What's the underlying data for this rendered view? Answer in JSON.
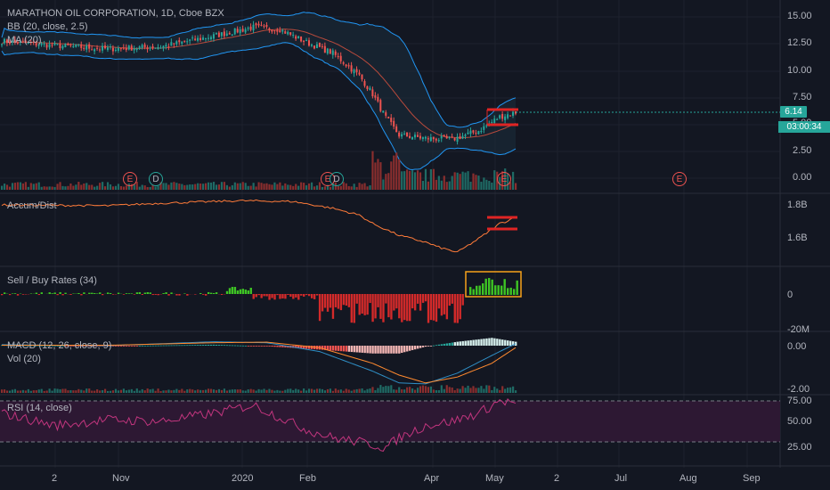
{
  "header": {
    "symbol_title": "MARATHON OIL CORPORATION, 1D, Cboe BZX",
    "bb_indicator": "BB (20, close, 2.5)",
    "ma_indicator": "MA (20)"
  },
  "last_price": "6.14",
  "countdown": "03:00:34",
  "panes": {
    "accum": "Accum/Dist",
    "sellbuy": "Sell / Buy Rates (34)",
    "macd": "MACD (12, 26, close, 9)",
    "vol": "Vol (20)",
    "rsi": "RSI (14, close)"
  },
  "price_axis": [
    "15.00",
    "12.50",
    "10.00",
    "7.50",
    "5.00",
    "2.50",
    "0.00"
  ],
  "accum_axis": [
    "1.8B",
    "1.6B"
  ],
  "sellbuy_axis": [
    "0",
    "-20M"
  ],
  "macd_axis": [
    "0.00",
    "-2.00"
  ],
  "rsi_axis": [
    "75.00",
    "50.00",
    "25.00"
  ],
  "time_axis": [
    "2",
    "Nov",
    "2020",
    "Feb",
    "Apr",
    "May",
    "2",
    "Jul",
    "Aug",
    "Sep"
  ],
  "events": [
    {
      "label": "E",
      "kind": "earnings"
    },
    {
      "label": "D",
      "kind": "dividend"
    },
    {
      "label": "E",
      "kind": "earnings"
    },
    {
      "label": "D",
      "kind": "dividend"
    },
    {
      "label": "E",
      "kind": "earnings"
    },
    {
      "label": "E",
      "kind": "earnings"
    }
  ],
  "colors": {
    "background": "#131722",
    "up": "#26a69a",
    "down": "#ef5350",
    "bb_band": "#2196f3",
    "bb_fill": "#1a2c3a",
    "ma": "#f57c4d",
    "accum": "#ff7b39",
    "rsi": "#c2357e",
    "rsi_band": "#2d1833",
    "highlight": "#e02424",
    "buy_bar": "#3ec424",
    "sell_bar": "#d32a2a",
    "macd_line": "#2f8fc6",
    "signal_line": "#ff8a2f",
    "hist_pos_light": "#b3e6e1",
    "hist_neg_light": "#f5b7b5",
    "orange_box": "#f7a21b"
  },
  "chart_data": {
    "type": "candlestick",
    "title": "MARATHON OIL CORPORATION, 1D, Cboe BZX",
    "price_range": [
      0,
      15
    ],
    "approx_series": {
      "close_keypoints": [
        12.7,
        12.1,
        12.3,
        13.0,
        14.0,
        12.9,
        11.2,
        10.0,
        7.5,
        5.0,
        3.6,
        3.8,
        4.6,
        5.8,
        6.14
      ],
      "accum_range_b": [
        1.48,
        1.86
      ],
      "rsi_range": [
        20,
        80
      ]
    },
    "last_close": 6.14,
    "support_zone": [
      4.8,
      6.7
    ]
  }
}
